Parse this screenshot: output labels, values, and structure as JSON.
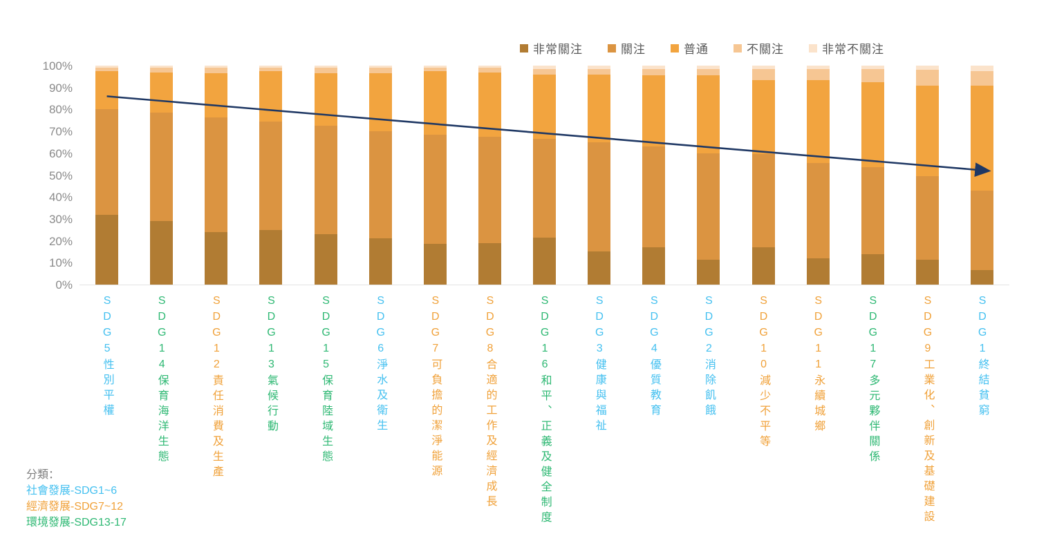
{
  "chart_data": {
    "type": "bar",
    "variant": "stacked-percent",
    "grid": false,
    "legend_position": "top-right",
    "y_axis": {
      "ticks": [
        "100%",
        "90%",
        "80%",
        "70%",
        "60%",
        "50%",
        "40%",
        "30%",
        "20%",
        "10%",
        "0%"
      ],
      "range": [
        0,
        100
      ],
      "tick_color": "#8a8a8a"
    },
    "categories": [
      {
        "sdg": "SDG5",
        "title": "性別平權",
        "group": "social"
      },
      {
        "sdg": "SDG14",
        "title": "保育海洋生態",
        "group": "env"
      },
      {
        "sdg": "SDG12",
        "title": "責任消費及生產",
        "group": "econ"
      },
      {
        "sdg": "SDG13",
        "title": "氣候行動",
        "group": "env"
      },
      {
        "sdg": "SDG15",
        "title": "保育陸域生態",
        "group": "env"
      },
      {
        "sdg": "SDG6",
        "title": "淨水及衛生",
        "group": "social"
      },
      {
        "sdg": "SDG7",
        "title": "可負擔的潔淨能源",
        "group": "econ"
      },
      {
        "sdg": "SDG8",
        "title": "合適的工作及經濟成長",
        "group": "econ"
      },
      {
        "sdg": "SDG16",
        "title": "和平、正義及健全制度",
        "group": "env"
      },
      {
        "sdg": "SDG3",
        "title": "健康與福祉",
        "group": "social"
      },
      {
        "sdg": "SDG4",
        "title": "優質教育",
        "group": "social"
      },
      {
        "sdg": "SDG2",
        "title": "消除飢餓",
        "group": "social"
      },
      {
        "sdg": "SDG10",
        "title": "減少不平等",
        "group": "econ"
      },
      {
        "sdg": "SDG11",
        "title": "永續城鄉",
        "group": "econ"
      },
      {
        "sdg": "SDG17",
        "title": "多元夥伴關係",
        "group": "env"
      },
      {
        "sdg": "SDG9",
        "title": "工業化、創新及基礎建設",
        "group": "econ"
      },
      {
        "sdg": "SDG1",
        "title": "終結貧窮",
        "group": "social"
      }
    ],
    "series": [
      {
        "name": "非常關注",
        "color": "#b17c33",
        "values": [
          32,
          29,
          24,
          25,
          23,
          21,
          18.5,
          19,
          21.5,
          15,
          17,
          11.5,
          17,
          12,
          14,
          11.5,
          6.5
        ]
      },
      {
        "name": "關注",
        "color": "#db9441",
        "values": [
          48,
          49.5,
          52.5,
          49.5,
          49.5,
          49,
          50,
          48.5,
          45,
          50,
          46,
          48.5,
          42.5,
          43.5,
          39.5,
          38,
          36.5
        ]
      },
      {
        "name": "普通",
        "color": "#f2a43f",
        "values": [
          17.5,
          18.5,
          20,
          23,
          24,
          26.5,
          29,
          29.5,
          29.5,
          31,
          32.5,
          35.5,
          34,
          38,
          39,
          41.5,
          48
        ]
      },
      {
        "name": "不關注",
        "color": "#f6c693",
        "values": [
          1.5,
          2,
          2.5,
          1.5,
          2.5,
          2.5,
          1.5,
          2,
          2.5,
          2.5,
          3,
          3,
          5,
          5,
          6,
          7,
          6.5
        ]
      },
      {
        "name": "非常不關注",
        "color": "#fbe3cb",
        "values": [
          1,
          1,
          1,
          1,
          1,
          1,
          1,
          1,
          1.5,
          1.5,
          1.5,
          1.5,
          1.5,
          1.5,
          1.5,
          2,
          2.5
        ]
      }
    ],
    "annotation": {
      "type": "trend-arrow",
      "color": "#1f3864",
      "from": {
        "bar_index": 0,
        "value": 86
      },
      "to": {
        "bar_index": 16,
        "value": 52
      }
    },
    "group_colors": {
      "social": "#44c0f0",
      "econ": "#f0a139",
      "env": "#2eb873"
    }
  },
  "note": {
    "title": "分類：",
    "title_color": "#7f7f7f",
    "social": "社會發展-SDG1~6",
    "econ": "經濟發展-SDG7~12",
    "env": "環境發展-SDG13-17"
  }
}
